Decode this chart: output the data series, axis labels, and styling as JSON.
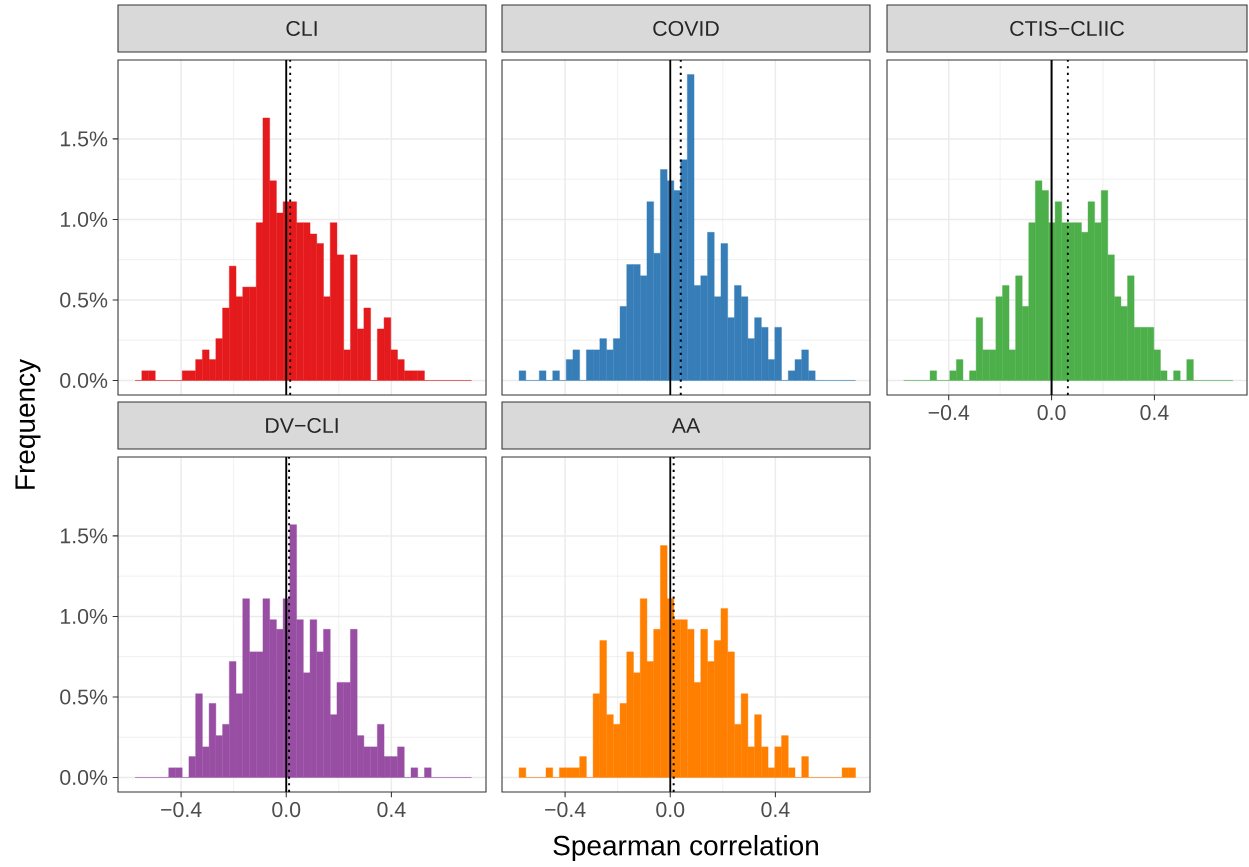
{
  "chart_data": [
    {
      "type": "histogram",
      "title": "CLI",
      "color": "#e41a1c",
      "tick_labels": "y",
      "grid": true,
      "xticks": [
        -0.4,
        0,
        0.4
      ],
      "bins": [
        -0.575,
        -0.5494,
        -0.5238,
        -0.4982,
        -0.4726,
        -0.447,
        -0.4214,
        -0.3958,
        -0.3702,
        -0.3446,
        -0.319,
        -0.2934,
        -0.2678,
        -0.2422,
        -0.2166,
        -0.191,
        -0.1654,
        -0.1398,
        -0.1142,
        -0.0886,
        -0.063,
        -0.0374,
        -0.0118,
        0.0138,
        0.0394,
        0.065,
        0.0906,
        0.1162,
        0.1418,
        0.1674,
        0.193,
        0.2186,
        0.2442,
        0.2698,
        0.2954,
        0.321,
        0.3466,
        0.3722,
        0.3978,
        0.4234,
        0.449,
        0.4746,
        0.5002,
        0.5258,
        0.5514,
        0.577,
        0.6026,
        0.6282,
        0.6538,
        0.6794,
        0.705
      ],
      "values": [
        0,
        0.06,
        0.06,
        0,
        0,
        0,
        0,
        0.06,
        0.06,
        0.13,
        0.19,
        0.13,
        0.26,
        0.45,
        0.71,
        0.52,
        0.58,
        0.58,
        0.98,
        1.63,
        1.24,
        1.04,
        1.11,
        1.11,
        0.98,
        0.98,
        0.91,
        0.85,
        0.52,
        0.98,
        0.78,
        0.19,
        0.78,
        0.32,
        0.45,
        0,
        0.32,
        0.39,
        0.19,
        0.13,
        0.06,
        0.06,
        0.06,
        0,
        0,
        0,
        0,
        0,
        0,
        0
      ],
      "xlim": [
        -0.64,
        0.76
      ],
      "ylim": [
        -0.09,
        1.99
      ],
      "yticks": [
        {
          "value": 0,
          "label": "0.0%"
        },
        {
          "value": 0.5,
          "label": "0.5%"
        },
        {
          "value": 1,
          "label": "1.0%"
        },
        {
          "value": 1.5,
          "label": "1.5%"
        }
      ],
      "ref_lines": [
        {
          "axis": "x",
          "value": 0,
          "line_style": "solid"
        },
        {
          "axis": "x",
          "value": 0.015,
          "line_style": "dotted"
        }
      ]
    },
    {
      "type": "histogram",
      "title": "COVID",
      "color": "#377eb8",
      "tick_labels": false,
      "grid": true,
      "xticks": [
        -0.4,
        0,
        0.4
      ],
      "yticks": [
        0,
        0.5,
        1,
        1.5
      ],
      "bins": [
        -0.575,
        -0.5494,
        -0.5238,
        -0.4982,
        -0.4726,
        -0.447,
        -0.4214,
        -0.3958,
        -0.3702,
        -0.3446,
        -0.319,
        -0.2934,
        -0.2678,
        -0.2422,
        -0.2166,
        -0.191,
        -0.1654,
        -0.1398,
        -0.1142,
        -0.0886,
        -0.063,
        -0.0374,
        -0.0118,
        0.0138,
        0.0394,
        0.065,
        0.0906,
        0.1162,
        0.1418,
        0.1674,
        0.193,
        0.2186,
        0.2442,
        0.2698,
        0.2954,
        0.321,
        0.3466,
        0.3722,
        0.3978,
        0.4234,
        0.449,
        0.4746,
        0.5002,
        0.5258,
        0.5514,
        0.577,
        0.6026,
        0.6282,
        0.6538,
        0.6794,
        0.705
      ],
      "values": [
        0.06,
        0,
        0,
        0.06,
        0,
        0.06,
        0,
        0.13,
        0.19,
        0,
        0.19,
        0.19,
        0.26,
        0.19,
        0.26,
        0.46,
        0.72,
        0.72,
        0.65,
        1.11,
        0.79,
        1.31,
        1.24,
        1.18,
        1.37,
        1.9,
        0.59,
        0.65,
        0.92,
        0.52,
        0.85,
        0.39,
        0.59,
        0.52,
        0.26,
        0.39,
        0.33,
        0.13,
        0.33,
        0,
        0.06,
        0.13,
        0.19,
        0.06,
        0,
        0,
        0,
        0,
        0,
        0
      ],
      "xlim": [
        -0.64,
        0.76
      ],
      "ylim": [
        -0.09,
        1.99
      ],
      "ref_lines": [
        {
          "axis": "x",
          "value": 0,
          "line_style": "solid"
        },
        {
          "axis": "x",
          "value": 0.04,
          "line_style": "dotted"
        }
      ]
    },
    {
      "type": "histogram",
      "title": "CTIS−CLIIC",
      "color": "#4daf4a",
      "tick_labels": "x",
      "grid": true,
      "yticks": [
        0,
        0.5,
        1,
        1.5
      ],
      "bins": [
        -0.575,
        -0.5494,
        -0.5238,
        -0.4982,
        -0.4726,
        -0.447,
        -0.4214,
        -0.3958,
        -0.3702,
        -0.3446,
        -0.319,
        -0.2934,
        -0.2678,
        -0.2422,
        -0.2166,
        -0.191,
        -0.1654,
        -0.1398,
        -0.1142,
        -0.0886,
        -0.063,
        -0.0374,
        -0.0118,
        0.0138,
        0.0394,
        0.065,
        0.0906,
        0.1162,
        0.1418,
        0.1674,
        0.193,
        0.2186,
        0.2442,
        0.2698,
        0.2954,
        0.321,
        0.3466,
        0.3722,
        0.3978,
        0.4234,
        0.449,
        0.4746,
        0.5002,
        0.5258,
        0.5514,
        0.577,
        0.6026,
        0.6282,
        0.6538,
        0.6794,
        0.705
      ],
      "values": [
        0,
        0,
        0,
        0,
        0.06,
        0,
        0,
        0.06,
        0.13,
        0,
        0.06,
        0.39,
        0.19,
        0.19,
        0.52,
        0.59,
        0.19,
        0.65,
        0.46,
        0.98,
        1.24,
        1.18,
        0.98,
        1.11,
        0.98,
        0.98,
        0.98,
        0.92,
        1.11,
        0.98,
        1.18,
        0.78,
        0.52,
        0.46,
        0.65,
        0.33,
        0.33,
        0.33,
        0.19,
        0.06,
        0,
        0.06,
        0,
        0.13,
        0,
        0,
        0,
        0,
        0,
        0
      ],
      "xlim": [
        -0.64,
        0.76
      ],
      "ylim": [
        -0.09,
        1.99
      ],
      "xticks": [
        {
          "value": -0.4,
          "label": "−0.4"
        },
        {
          "value": 0,
          "label": "0.0"
        },
        {
          "value": 0.4,
          "label": "0.4"
        }
      ],
      "ref_lines": [
        {
          "axis": "x",
          "value": 0,
          "line_style": "solid"
        },
        {
          "axis": "x",
          "value": 0.063,
          "line_style": "dotted"
        }
      ]
    },
    {
      "type": "histogram",
      "title": "DV−CLI",
      "color": "#984ea3",
      "ylabel": "Frequency",
      "grid": true,
      "bins": [
        -0.575,
        -0.5494,
        -0.5238,
        -0.4982,
        -0.4726,
        -0.447,
        -0.4214,
        -0.3958,
        -0.3702,
        -0.3446,
        -0.319,
        -0.2934,
        -0.2678,
        -0.2422,
        -0.2166,
        -0.191,
        -0.1654,
        -0.1398,
        -0.1142,
        -0.0886,
        -0.063,
        -0.0374,
        -0.0118,
        0.0138,
        0.0394,
        0.065,
        0.0906,
        0.1162,
        0.1418,
        0.1674,
        0.193,
        0.2186,
        0.2442,
        0.2698,
        0.2954,
        0.321,
        0.3466,
        0.3722,
        0.3978,
        0.4234,
        0.449,
        0.4746,
        0.5002,
        0.5258,
        0.5514,
        0.577,
        0.6026,
        0.6282,
        0.6538,
        0.6794,
        0.705
      ],
      "values": [
        0,
        0,
        0,
        0,
        0,
        0.06,
        0.06,
        0,
        0.13,
        0.52,
        0.19,
        0.46,
        0.26,
        0.33,
        0.72,
        0.52,
        1.11,
        0.78,
        0.78,
        1.11,
        0.98,
        0.92,
        1.11,
        1.57,
        0.98,
        0.65,
        0.98,
        0.78,
        0.92,
        0.39,
        0.59,
        0.59,
        0.92,
        0.26,
        0.19,
        0.19,
        0.33,
        0.13,
        0.13,
        0.19,
        0,
        0.06,
        0,
        0.06,
        0,
        0,
        0,
        0,
        0,
        0
      ],
      "xlim": [
        -0.64,
        0.76
      ],
      "ylim": [
        -0.09,
        1.99
      ],
      "xticks": [
        {
          "value": -0.4,
          "label": "−0.4"
        },
        {
          "value": 0,
          "label": "0.0"
        },
        {
          "value": 0.4,
          "label": "0.4"
        }
      ],
      "yticks": [
        {
          "value": 0,
          "label": "0.0%"
        },
        {
          "value": 0.5,
          "label": "0.5%"
        },
        {
          "value": 1,
          "label": "1.0%"
        },
        {
          "value": 1.5,
          "label": "1.5%"
        }
      ],
      "ref_lines": [
        {
          "axis": "x",
          "value": 0,
          "line_style": "solid"
        },
        {
          "axis": "x",
          "value": 0.011,
          "line_style": "dotted"
        }
      ]
    },
    {
      "type": "histogram",
      "title": "AA",
      "color": "#ff7f00",
      "xlabel": "Spearman correlation",
      "tick_labels": "x",
      "grid": true,
      "yticks": [
        0,
        0.5,
        1,
        1.5
      ],
      "bins": [
        -0.575,
        -0.5494,
        -0.5238,
        -0.4982,
        -0.4726,
        -0.447,
        -0.4214,
        -0.3958,
        -0.3702,
        -0.3446,
        -0.319,
        -0.2934,
        -0.2678,
        -0.2422,
        -0.2166,
        -0.191,
        -0.1654,
        -0.1398,
        -0.1142,
        -0.0886,
        -0.063,
        -0.0374,
        -0.0118,
        0.0138,
        0.0394,
        0.065,
        0.0906,
        0.1162,
        0.1418,
        0.1674,
        0.193,
        0.2186,
        0.2442,
        0.2698,
        0.2954,
        0.321,
        0.3466,
        0.3722,
        0.3978,
        0.4234,
        0.449,
        0.4746,
        0.5002,
        0.5258,
        0.5514,
        0.577,
        0.6026,
        0.6282,
        0.6538,
        0.6794,
        0.705
      ],
      "values": [
        0.06,
        0,
        0,
        0,
        0.06,
        0,
        0.06,
        0.06,
        0.06,
        0.13,
        0,
        0.52,
        0.85,
        0.39,
        0.33,
        0.46,
        0.78,
        0.65,
        1.11,
        0.72,
        0.92,
        1.44,
        1.11,
        0.98,
        0.98,
        0.92,
        0.59,
        0.92,
        0.72,
        0.85,
        1.05,
        0.78,
        0.33,
        0.52,
        0.19,
        0.39,
        0.19,
        0.06,
        0.19,
        0.26,
        0.06,
        0,
        0.13,
        0,
        0,
        0,
        0,
        0,
        0.06,
        0.06
      ],
      "xlim": [
        -0.64,
        0.76
      ],
      "ylim": [
        -0.09,
        1.99
      ],
      "xticks": [
        {
          "value": -0.4,
          "label": "−0.4"
        },
        {
          "value": 0,
          "label": "0.0"
        },
        {
          "value": 0.4,
          "label": "0.4"
        }
      ],
      "ref_lines": [
        {
          "axis": "x",
          "value": 0,
          "line_style": "solid"
        },
        {
          "axis": "x",
          "value": 0.013,
          "line_style": "dotted"
        }
      ]
    }
  ]
}
